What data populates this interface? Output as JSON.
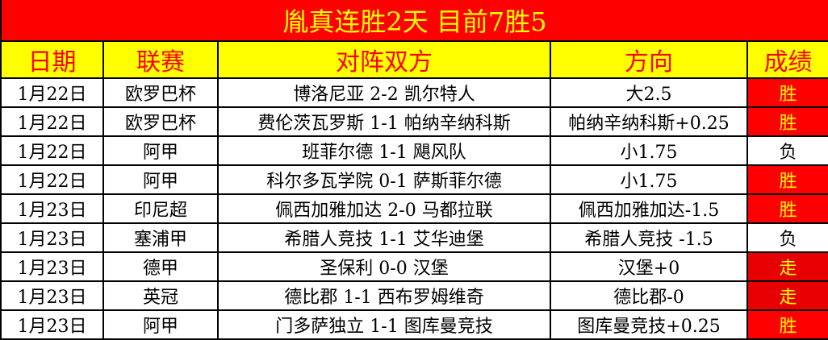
{
  "title": "胤真连胜2天  目前7胜5",
  "headers": [
    "日期",
    "联赛",
    "对阵双方",
    "方向",
    "成绩"
  ],
  "colors": {
    "title_bg": "#ff0000",
    "title_text": "#ffff00",
    "header_bg": "#ffff00",
    "header_text": "#ff0000",
    "win_bg": "#ff0000",
    "push_bg": "#e60000",
    "result_text": "#ffff00"
  },
  "rows": [
    {
      "date": "1月22日",
      "league": "欧罗巴杯",
      "match": "博洛尼亚 2-2 凯尔特人",
      "pick": "大2.5",
      "result": "胜"
    },
    {
      "date": "1月22日",
      "league": "欧罗巴杯",
      "match": "费伦茨瓦罗斯 1-1 帕纳辛纳科斯",
      "pick": "帕纳辛纳科斯+0.25",
      "result": "胜"
    },
    {
      "date": "1月22日",
      "league": "阿甲",
      "match": "班菲尔德 1-1 飓风队",
      "pick": "小1.75",
      "result": "负"
    },
    {
      "date": "1月22日",
      "league": "阿甲",
      "match": "科尔多瓦学院 0-1 萨斯菲尔德",
      "pick": "小1.75",
      "result": "胜"
    },
    {
      "date": "1月23日",
      "league": "印尼超",
      "match": "佩西加雅加达 2-0 马都拉联",
      "pick": "佩西加雅加达-1.5",
      "result": "胜"
    },
    {
      "date": "1月23日",
      "league": "塞浦甲",
      "match": "希腊人竞技 1-1 艾华迪堡",
      "pick": "希腊人竞技 -1.5",
      "result": "负"
    },
    {
      "date": "1月23日",
      "league": "德甲",
      "match": "圣保利 0-0 汉堡",
      "pick": "汉堡+0",
      "result": "走"
    },
    {
      "date": "1月23日",
      "league": "英冠",
      "match": "德比郡 1-1 西布罗姆维奇",
      "pick": "德比郡-0",
      "result": "走"
    },
    {
      "date": "1月23日",
      "league": "阿甲",
      "match": "门多萨独立 1-1 图库曼竞技",
      "pick": "图库曼竞技+0.25",
      "result": "胜"
    }
  ]
}
